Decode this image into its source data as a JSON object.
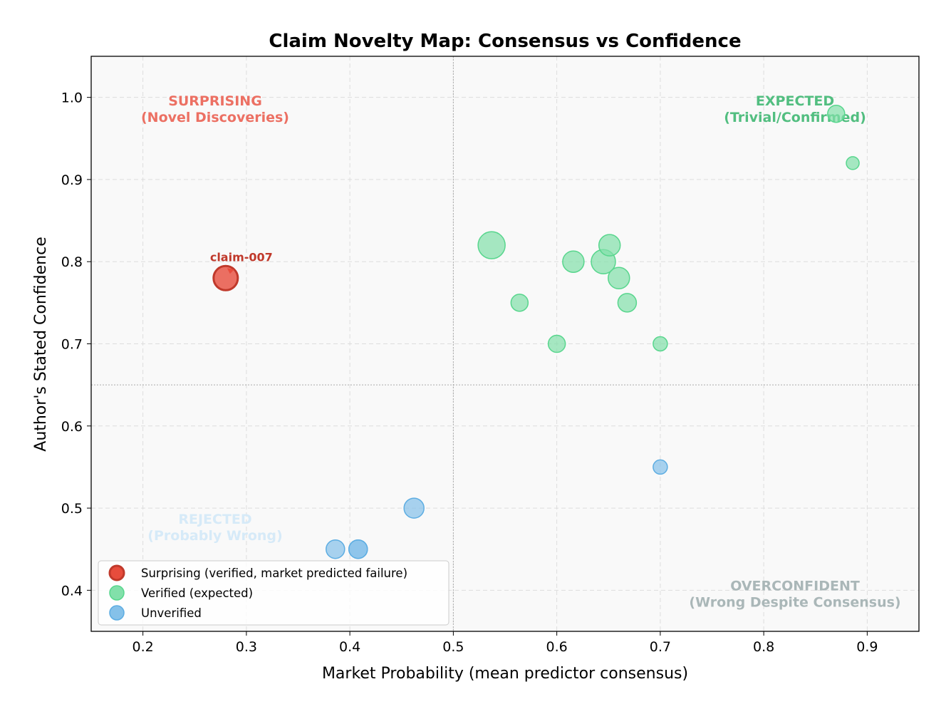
{
  "chart_data": {
    "type": "scatter",
    "title": "Claim Novelty Map: Consensus vs Confidence",
    "xlabel": "Market Probability (mean predictor consensus)",
    "ylabel": "Author's Stated Confidence",
    "xlim": [
      0.15,
      0.95
    ],
    "ylim": [
      0.35,
      1.05
    ],
    "xticks": [
      "0.2",
      "0.3",
      "0.4",
      "0.5",
      "0.6",
      "0.7",
      "0.8",
      "0.9"
    ],
    "yticks": [
      "0.4",
      "0.5",
      "0.6",
      "0.7",
      "0.8",
      "0.9",
      "1.0"
    ],
    "grid": true,
    "legend_placement": "lower-left",
    "threshold_lines": {
      "x": 0.5,
      "y": 0.65
    },
    "series": [
      {
        "name": "Surprising (verified, market predicted failure)",
        "color": "#e74c3c",
        "edge": "#c0392b",
        "points": [
          {
            "x": 0.28,
            "y": 0.78
          }
        ]
      },
      {
        "name": "Verified (expected)",
        "color": "#82e0aa",
        "edge": "#58d68d",
        "points": [
          {
            "x": 0.87,
            "y": 0.98
          },
          {
            "x": 0.886,
            "y": 0.92
          },
          {
            "x": 0.537,
            "y": 0.82
          },
          {
            "x": 0.616,
            "y": 0.8
          },
          {
            "x": 0.645,
            "y": 0.8
          },
          {
            "x": 0.651,
            "y": 0.82
          },
          {
            "x": 0.66,
            "y": 0.78
          },
          {
            "x": 0.668,
            "y": 0.75
          },
          {
            "x": 0.564,
            "y": 0.75
          },
          {
            "x": 0.6,
            "y": 0.7
          },
          {
            "x": 0.7,
            "y": 0.7
          }
        ]
      },
      {
        "name": "Unverified",
        "color": "#85c1e9",
        "edge": "#5dade2",
        "points": [
          {
            "x": 0.7,
            "y": 0.55
          },
          {
            "x": 0.462,
            "y": 0.5
          },
          {
            "x": 0.386,
            "y": 0.45
          },
          {
            "x": 0.408,
            "y": 0.45
          },
          {
            "x": 0.408,
            "y": 0.45
          }
        ]
      }
    ],
    "annotations": [
      {
        "text": "claim-007",
        "x": 0.28,
        "y": 0.78,
        "color": "#c0392b"
      }
    ],
    "quadrant_labels": [
      {
        "title": "SURPRISING",
        "subtitle": "(Novel Discoveries)",
        "x": 0.27,
        "y": 0.99,
        "color": "#ec7063"
      },
      {
        "title": "EXPECTED",
        "subtitle": "(Trivial/Confirmed)",
        "x": 0.8,
        "y": 0.99,
        "color": "#52be80"
      },
      {
        "title": "REJECTED",
        "subtitle": "(Probably Wrong)",
        "x": 0.27,
        "y": 0.4,
        "color": "#d6eaf8"
      },
      {
        "title": "OVERCONFIDENT",
        "subtitle": "(Wrong Despite Consensus)",
        "x": 0.8,
        "y": 0.4,
        "color": "#aab7b8"
      }
    ]
  }
}
